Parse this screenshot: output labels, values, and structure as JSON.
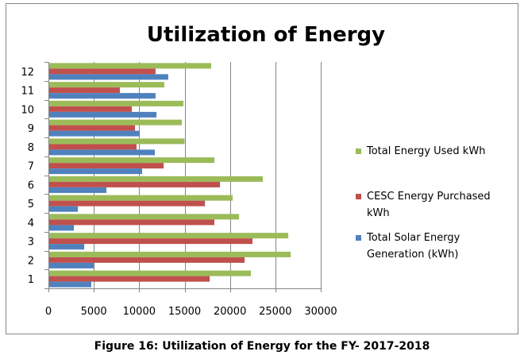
{
  "caption": "Figure 16: Utilization of Energy for the FY- 2017-2018",
  "chart_data": {
    "type": "bar",
    "orientation": "horizontal",
    "title": "Utilization of Energy",
    "xlabel": "",
    "ylabel": "",
    "xlim": [
      0,
      30000
    ],
    "x_ticks": [
      0,
      5000,
      10000,
      15000,
      20000,
      25000,
      30000
    ],
    "x_tick_labels": [
      "0",
      "5000",
      "10000",
      "15000",
      "20000",
      "25000",
      "30000"
    ],
    "grid": "vertical",
    "legend_position": "right",
    "categories": [
      "1",
      "2",
      "3",
      "4",
      "5",
      "6",
      "7",
      "8",
      "9",
      "10",
      "11",
      "12"
    ],
    "series": [
      {
        "name": "Total Solar Energy Generation (kWh)",
        "legend_lines": [
          "Total Solar Energy",
          "Generation (kWh)"
        ],
        "color": "#4F81BD",
        "values": [
          4720,
          4990,
          3940,
          2800,
          3240,
          6390,
          10320,
          11720,
          10060,
          11900,
          11800,
          13200
        ]
      },
      {
        "name": "CESC Energy  Purchased kWh",
        "legend_lines": [
          "CESC Energy  Purchased",
          "kWh"
        ],
        "color": "#C0504D",
        "values": [
          17760,
          21610,
          22480,
          18280,
          17240,
          18900,
          12690,
          9710,
          9540,
          9190,
          7870,
          11800
        ]
      },
      {
        "name": "Total Energy Used kWh",
        "legend_lines": [
          "Total Energy  Used kWh"
        ],
        "color": "#9BBB59",
        "values": [
          22310,
          26680,
          26420,
          21000,
          20300,
          23620,
          18280,
          15000,
          14700,
          14870,
          12770,
          17930
        ]
      }
    ]
  }
}
